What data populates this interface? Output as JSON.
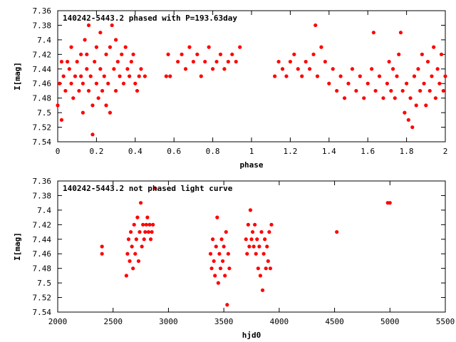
{
  "chart_data": [
    {
      "type": "scatter",
      "title": "140242-5443.2 phased with P=193.63day",
      "xlabel": "phase",
      "ylabel": "I[mag]",
      "xlim": [
        0,
        2
      ],
      "ylim": [
        7.54,
        7.36
      ],
      "y_inverted": true,
      "xticks": [
        0,
        0.2,
        0.4,
        0.6,
        0.8,
        1,
        1.2,
        1.4,
        1.6,
        1.8,
        2
      ],
      "xtick_labels": [
        "0",
        "0.2",
        "0.4",
        "0.6",
        "0.8",
        "1",
        "1.2",
        "1.4",
        "1.6",
        "1.8",
        "2"
      ],
      "yticks": [
        7.36,
        7.38,
        7.4,
        7.42,
        7.44,
        7.46,
        7.48,
        7.5,
        7.52,
        7.54
      ],
      "ytick_labels": [
        "7.36",
        "7.38",
        "7.4",
        "7.42",
        "7.44",
        "7.46",
        "7.48",
        "7.5",
        "7.52",
        "7.54"
      ],
      "grid": false,
      "marker_color": "#ff0000",
      "marker": "filled-circle",
      "points": [
        [
          0.0,
          7.49
        ],
        [
          0.01,
          7.46
        ],
        [
          0.02,
          7.43
        ],
        [
          0.02,
          7.51
        ],
        [
          0.03,
          7.45
        ],
        [
          0.04,
          7.47
        ],
        [
          0.05,
          7.43
        ],
        [
          0.06,
          7.44
        ],
        [
          0.07,
          7.46
        ],
        [
          0.07,
          7.41
        ],
        [
          0.08,
          7.48
        ],
        [
          0.09,
          7.45
        ],
        [
          0.1,
          7.43
        ],
        [
          0.11,
          7.47
        ],
        [
          0.12,
          7.45
        ],
        [
          0.12,
          7.42
        ],
        [
          0.13,
          7.46
        ],
        [
          0.13,
          7.5
        ],
        [
          0.14,
          7.4
        ],
        [
          0.15,
          7.44
        ],
        [
          0.15,
          7.42
        ],
        [
          0.16,
          7.47
        ],
        [
          0.16,
          7.38
        ],
        [
          0.17,
          7.45
        ],
        [
          0.18,
          7.49
        ],
        [
          0.18,
          7.53
        ],
        [
          0.19,
          7.43
        ],
        [
          0.2,
          7.46
        ],
        [
          0.2,
          7.41
        ],
        [
          0.21,
          7.48
        ],
        [
          0.22,
          7.44
        ],
        [
          0.22,
          7.39
        ],
        [
          0.23,
          7.47
        ],
        [
          0.24,
          7.45
        ],
        [
          0.25,
          7.49
        ],
        [
          0.25,
          7.42
        ],
        [
          0.26,
          7.46
        ],
        [
          0.27,
          7.5
        ],
        [
          0.27,
          7.41
        ],
        [
          0.28,
          7.38
        ],
        [
          0.29,
          7.44
        ],
        [
          0.3,
          7.4
        ],
        [
          0.3,
          7.47
        ],
        [
          0.31,
          7.43
        ],
        [
          0.32,
          7.45
        ],
        [
          0.33,
          7.42
        ],
        [
          0.34,
          7.46
        ],
        [
          0.35,
          7.41
        ],
        [
          0.36,
          7.44
        ],
        [
          0.37,
          7.45
        ],
        [
          0.38,
          7.43
        ],
        [
          0.39,
          7.42
        ],
        [
          0.4,
          7.46
        ],
        [
          0.41,
          7.47
        ],
        [
          0.42,
          7.45
        ],
        [
          0.43,
          7.44
        ],
        [
          0.45,
          7.45
        ],
        [
          0.56,
          7.45
        ],
        [
          0.57,
          7.42
        ],
        [
          0.58,
          7.45
        ],
        [
          0.62,
          7.43
        ],
        [
          0.64,
          7.42
        ],
        [
          0.66,
          7.44
        ],
        [
          0.68,
          7.41
        ],
        [
          0.7,
          7.43
        ],
        [
          0.72,
          7.42
        ],
        [
          0.74,
          7.45
        ],
        [
          0.76,
          7.43
        ],
        [
          0.78,
          7.41
        ],
        [
          0.8,
          7.44
        ],
        [
          0.82,
          7.43
        ],
        [
          0.84,
          7.42
        ],
        [
          0.86,
          7.44
        ],
        [
          0.88,
          7.43
        ],
        [
          0.9,
          7.42
        ],
        [
          0.92,
          7.43
        ],
        [
          0.94,
          7.41
        ],
        [
          1.12,
          7.45
        ],
        [
          1.14,
          7.43
        ],
        [
          1.16,
          7.44
        ],
        [
          1.18,
          7.45
        ],
        [
          1.2,
          7.43
        ],
        [
          1.22,
          7.42
        ],
        [
          1.24,
          7.44
        ],
        [
          1.26,
          7.45
        ],
        [
          1.28,
          7.43
        ],
        [
          1.3,
          7.44
        ],
        [
          1.32,
          7.42
        ],
        [
          1.33,
          7.38
        ],
        [
          1.34,
          7.45
        ],
        [
          1.36,
          7.41
        ],
        [
          1.38,
          7.43
        ],
        [
          1.4,
          7.46
        ],
        [
          1.42,
          7.44
        ],
        [
          1.44,
          7.47
        ],
        [
          1.46,
          7.45
        ],
        [
          1.48,
          7.48
        ],
        [
          1.5,
          7.46
        ],
        [
          1.52,
          7.44
        ],
        [
          1.54,
          7.47
        ],
        [
          1.56,
          7.45
        ],
        [
          1.58,
          7.48
        ],
        [
          1.6,
          7.46
        ],
        [
          1.62,
          7.44
        ],
        [
          1.63,
          7.39
        ],
        [
          1.64,
          7.47
        ],
        [
          1.66,
          7.45
        ],
        [
          1.68,
          7.48
        ],
        [
          1.7,
          7.46
        ],
        [
          1.71,
          7.43
        ],
        [
          1.72,
          7.47
        ],
        [
          1.73,
          7.44
        ],
        [
          1.74,
          7.48
        ],
        [
          1.75,
          7.45
        ],
        [
          1.76,
          7.42
        ],
        [
          1.77,
          7.39
        ],
        [
          1.78,
          7.47
        ],
        [
          1.79,
          7.5
        ],
        [
          1.8,
          7.46
        ],
        [
          1.81,
          7.51
        ],
        [
          1.82,
          7.48
        ],
        [
          1.83,
          7.52
        ],
        [
          1.84,
          7.45
        ],
        [
          1.85,
          7.49
        ],
        [
          1.86,
          7.44
        ],
        [
          1.87,
          7.47
        ],
        [
          1.88,
          7.42
        ],
        [
          1.89,
          7.46
        ],
        [
          1.9,
          7.49
        ],
        [
          1.91,
          7.43
        ],
        [
          1.92,
          7.47
        ],
        [
          1.93,
          7.45
        ],
        [
          1.94,
          7.41
        ],
        [
          1.95,
          7.48
        ],
        [
          1.96,
          7.44
        ],
        [
          1.97,
          7.46
        ],
        [
          1.98,
          7.42
        ],
        [
          1.99,
          7.47
        ],
        [
          2.0,
          7.45
        ]
      ]
    },
    {
      "type": "scatter",
      "title": "140242-5443.2 not phased light curve",
      "xlabel": "hjd0",
      "ylabel": "I[mag]",
      "xlim": [
        2000,
        5500
      ],
      "ylim": [
        7.54,
        7.36
      ],
      "y_inverted": true,
      "xticks": [
        2000,
        2500,
        3000,
        3500,
        4000,
        4500,
        5000,
        5500
      ],
      "xtick_labels": [
        "2000",
        "2500",
        "3000",
        "3500",
        "4000",
        "4500",
        "5000",
        "5500"
      ],
      "yticks": [
        7.36,
        7.38,
        7.4,
        7.42,
        7.44,
        7.46,
        7.48,
        7.5,
        7.52,
        7.54
      ],
      "ytick_labels": [
        "7.36",
        "7.38",
        "7.4",
        "7.42",
        "7.44",
        "7.46",
        "7.48",
        "7.5",
        "7.52",
        "7.54"
      ],
      "grid": false,
      "marker_color": "#ff0000",
      "marker": "filled-circle",
      "points": [
        [
          2400,
          7.45
        ],
        [
          2400,
          7.46
        ],
        [
          2620,
          7.49
        ],
        [
          2630,
          7.46
        ],
        [
          2640,
          7.44
        ],
        [
          2650,
          7.47
        ],
        [
          2660,
          7.43
        ],
        [
          2670,
          7.45
        ],
        [
          2680,
          7.48
        ],
        [
          2690,
          7.42
        ],
        [
          2700,
          7.46
        ],
        [
          2710,
          7.44
        ],
        [
          2720,
          7.41
        ],
        [
          2730,
          7.47
        ],
        [
          2740,
          7.43
        ],
        [
          2750,
          7.39
        ],
        [
          2760,
          7.45
        ],
        [
          2770,
          7.42
        ],
        [
          2780,
          7.44
        ],
        [
          2790,
          7.43
        ],
        [
          2800,
          7.42
        ],
        [
          2810,
          7.41
        ],
        [
          2820,
          7.43
        ],
        [
          2830,
          7.42
        ],
        [
          2840,
          7.44
        ],
        [
          2850,
          7.43
        ],
        [
          2860,
          7.42
        ],
        [
          2880,
          7.37
        ],
        [
          3380,
          7.46
        ],
        [
          3390,
          7.48
        ],
        [
          3400,
          7.44
        ],
        [
          3410,
          7.47
        ],
        [
          3420,
          7.49
        ],
        [
          3430,
          7.45
        ],
        [
          3440,
          7.41
        ],
        [
          3450,
          7.5
        ],
        [
          3460,
          7.46
        ],
        [
          3470,
          7.48
        ],
        [
          3480,
          7.44
        ],
        [
          3490,
          7.47
        ],
        [
          3500,
          7.45
        ],
        [
          3510,
          7.49
        ],
        [
          3520,
          7.43
        ],
        [
          3530,
          7.53
        ],
        [
          3540,
          7.46
        ],
        [
          3550,
          7.48
        ],
        [
          3700,
          7.44
        ],
        [
          3710,
          7.46
        ],
        [
          3720,
          7.42
        ],
        [
          3730,
          7.45
        ],
        [
          3740,
          7.4
        ],
        [
          3750,
          7.44
        ],
        [
          3760,
          7.43
        ],
        [
          3770,
          7.45
        ],
        [
          3780,
          7.42
        ],
        [
          3790,
          7.46
        ],
        [
          3800,
          7.44
        ],
        [
          3810,
          7.48
        ],
        [
          3820,
          7.45
        ],
        [
          3830,
          7.49
        ],
        [
          3840,
          7.43
        ],
        [
          3850,
          7.51
        ],
        [
          3860,
          7.46
        ],
        [
          3870,
          7.44
        ],
        [
          3880,
          7.48
        ],
        [
          3890,
          7.45
        ],
        [
          3900,
          7.47
        ],
        [
          3910,
          7.43
        ],
        [
          3920,
          7.48
        ],
        [
          3930,
          7.42
        ],
        [
          4520,
          7.43
        ],
        [
          4980,
          7.39
        ],
        [
          5000,
          7.39
        ]
      ]
    }
  ]
}
